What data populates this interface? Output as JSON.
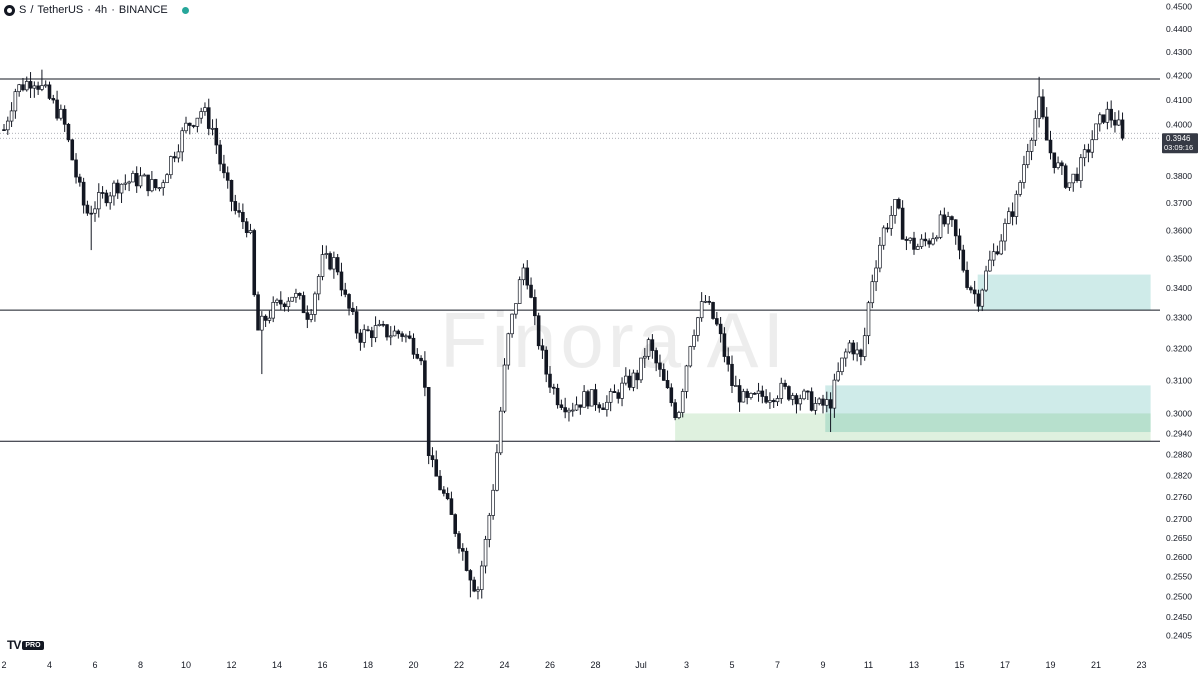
{
  "header": {
    "symbol": "S",
    "separator": "/",
    "quote": "TetherUS",
    "interval": "4h",
    "exchange": "BINANCE",
    "status_color": "#26a69a"
  },
  "watermark": "Finora AI",
  "logo": {
    "mark": "TV",
    "badge": "PRO"
  },
  "price_tag": {
    "price": "0.3946",
    "countdown": "03:09:16",
    "bg": "#363a45"
  },
  "chart_data": {
    "type": "candlestick",
    "y_axis": {
      "scale": "log",
      "range": [
        0.2375,
        0.4515
      ],
      "ticks": [
        "0.4500",
        "0.4400",
        "0.4300",
        "0.4200",
        "0.4100",
        "0.4000",
        "0.3800",
        "0.3700",
        "0.3600",
        "0.3500",
        "0.3400",
        "0.3300",
        "0.3200",
        "0.3100",
        "0.3000",
        "0.2940",
        "0.2880",
        "0.2820",
        "0.2760",
        "0.2700",
        "0.2650",
        "0.2600",
        "0.2550",
        "0.2500",
        "0.2450",
        "0.2405"
      ]
    },
    "x_axis": {
      "ticks": [
        {
          "label": "2",
          "day": 0
        },
        {
          "label": "4",
          "day": 2
        },
        {
          "label": "6",
          "day": 4
        },
        {
          "label": "8",
          "day": 6
        },
        {
          "label": "10",
          "day": 8
        },
        {
          "label": "12",
          "day": 10
        },
        {
          "label": "14",
          "day": 12
        },
        {
          "label": "16",
          "day": 14
        },
        {
          "label": "18",
          "day": 16
        },
        {
          "label": "20",
          "day": 18
        },
        {
          "label": "22",
          "day": 20
        },
        {
          "label": "24",
          "day": 22
        },
        {
          "label": "26",
          "day": 24
        },
        {
          "label": "28",
          "day": 26
        },
        {
          "label": "Jul",
          "day": 28
        },
        {
          "label": "3",
          "day": 30
        },
        {
          "label": "5",
          "day": 32
        },
        {
          "label": "7",
          "day": 34
        },
        {
          "label": "9",
          "day": 36
        },
        {
          "label": "11",
          "day": 38
        },
        {
          "label": "13",
          "day": 40
        },
        {
          "label": "15",
          "day": 42
        },
        {
          "label": "17",
          "day": 44
        },
        {
          "label": "19",
          "day": 46
        },
        {
          "label": "21",
          "day": 48
        },
        {
          "label": "23",
          "day": 50
        }
      ]
    },
    "horizontal_lines": [
      0.4186,
      0.3325,
      0.2918
    ],
    "current_price": 0.3946,
    "current_price_line_color": "#9598a1",
    "zones": [
      {
        "name": "demand-zone-upper",
        "day_start": 42.8,
        "day_end": 50.4,
        "top": 0.3445,
        "bottom": 0.3325,
        "color": "#26a69a",
        "opacity": 0.22
      },
      {
        "name": "demand-zone-lower",
        "day_start": 36.1,
        "day_end": 50.4,
        "top": 0.3085,
        "bottom": 0.2945,
        "color": "#26a69a",
        "opacity": 0.22
      },
      {
        "name": "demand-zone-base",
        "day_start": 29.5,
        "day_end": 50.4,
        "top": 0.3,
        "bottom": 0.2918,
        "color": "#4caf50",
        "opacity": 0.18
      }
    ],
    "up_color": "#ffffff",
    "down_color": "#131722",
    "candles_per_day": 6,
    "path": [
      [
        0,
        0.398
      ],
      [
        0.5,
        0.414
      ],
      [
        1.3,
        0.419
      ],
      [
        1.8,
        0.413
      ],
      [
        2.6,
        0.402
      ],
      [
        3.2,
        0.379
      ],
      [
        3.6,
        0.366
      ],
      [
        4.2,
        0.371
      ],
      [
        5.0,
        0.377
      ],
      [
        6.0,
        0.379
      ],
      [
        6.8,
        0.375
      ],
      [
        7.3,
        0.386
      ],
      [
        8.0,
        0.399
      ],
      [
        8.7,
        0.406
      ],
      [
        9.2,
        0.398
      ],
      [
        9.6,
        0.381
      ],
      [
        10.2,
        0.366
      ],
      [
        10.8,
        0.361
      ],
      [
        11.1,
        0.325
      ],
      [
        11.6,
        0.331
      ],
      [
        12.3,
        0.336
      ],
      [
        12.7,
        0.338
      ],
      [
        13.4,
        0.331
      ],
      [
        14.0,
        0.349
      ],
      [
        14.6,
        0.349
      ],
      [
        15.0,
        0.336
      ],
      [
        15.6,
        0.324
      ],
      [
        16.3,
        0.326
      ],
      [
        17.0,
        0.325
      ],
      [
        17.5,
        0.325
      ],
      [
        18.4,
        0.318
      ],
      [
        18.7,
        0.286
      ],
      [
        19.3,
        0.277
      ],
      [
        19.8,
        0.268
      ],
      [
        20.3,
        0.259
      ],
      [
        20.8,
        0.251
      ],
      [
        21.2,
        0.265
      ],
      [
        21.6,
        0.284
      ],
      [
        22.1,
        0.321
      ],
      [
        22.5,
        0.336
      ],
      [
        22.9,
        0.349
      ],
      [
        23.3,
        0.329
      ],
      [
        23.8,
        0.313
      ],
      [
        24.3,
        0.305
      ],
      [
        24.9,
        0.302
      ],
      [
        25.6,
        0.305
      ],
      [
        26.5,
        0.303
      ],
      [
        27.2,
        0.308
      ],
      [
        27.9,
        0.312
      ],
      [
        28.3,
        0.322
      ],
      [
        29.0,
        0.309
      ],
      [
        29.6,
        0.299
      ],
      [
        30.2,
        0.324
      ],
      [
        30.8,
        0.336
      ],
      [
        31.4,
        0.326
      ],
      [
        32.0,
        0.309
      ],
      [
        32.6,
        0.303
      ],
      [
        33.2,
        0.305
      ],
      [
        34.2,
        0.307
      ],
      [
        35.1,
        0.305
      ],
      [
        35.8,
        0.302
      ],
      [
        36.3,
        0.303
      ],
      [
        36.8,
        0.315
      ],
      [
        37.2,
        0.322
      ],
      [
        37.7,
        0.316
      ],
      [
        38.1,
        0.341
      ],
      [
        38.6,
        0.359
      ],
      [
        39.2,
        0.369
      ],
      [
        39.6,
        0.357
      ],
      [
        40.1,
        0.354
      ],
      [
        40.7,
        0.357
      ],
      [
        41.2,
        0.363
      ],
      [
        41.7,
        0.361
      ],
      [
        42.3,
        0.343
      ],
      [
        42.8,
        0.336
      ],
      [
        43.3,
        0.348
      ],
      [
        43.9,
        0.359
      ],
      [
        44.5,
        0.371
      ],
      [
        45.0,
        0.392
      ],
      [
        45.5,
        0.408
      ],
      [
        45.9,
        0.391
      ],
      [
        46.4,
        0.382
      ],
      [
        46.8,
        0.377
      ],
      [
        47.3,
        0.383
      ],
      [
        47.9,
        0.396
      ],
      [
        48.4,
        0.405
      ],
      [
        48.9,
        0.401
      ],
      [
        49.2,
        0.3946
      ]
    ],
    "extreme_wicks": [
      {
        "day": 1.6,
        "high": 0.4225
      },
      {
        "day": 45.5,
        "high": 0.4195
      },
      {
        "day": 20.5,
        "low": 0.2498
      },
      {
        "day": 21.0,
        "low": 0.2498
      },
      {
        "day": 3.8,
        "low": 0.353
      },
      {
        "day": 11.3,
        "low": 0.312
      },
      {
        "day": 36.3,
        "low": 0.2945
      },
      {
        "day": 42.9,
        "low": 0.3325
      }
    ]
  }
}
